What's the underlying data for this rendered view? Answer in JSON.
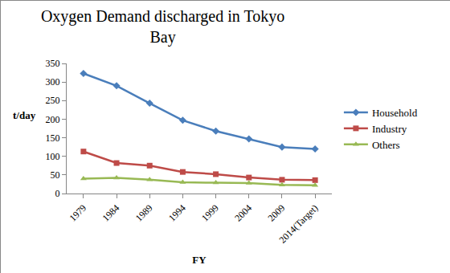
{
  "chart_data": {
    "type": "line",
    "title": "Oxygen Demand discharged in Tokyo Bay",
    "x_label": "FY",
    "y_label": "t/day",
    "categories": [
      "1979",
      "1984",
      "1989",
      "1994",
      "1999",
      "2004",
      "2009",
      "2014(Target)"
    ],
    "series": [
      {
        "name": "Household",
        "color": "#4a7ebb",
        "marker": "diamond",
        "values": [
          323,
          290,
          243,
          197,
          168,
          147,
          125,
          120
        ]
      },
      {
        "name": "Industry",
        "color": "#be4b48",
        "marker": "square",
        "values": [
          113,
          82,
          75,
          58,
          52,
          43,
          37,
          36
        ]
      },
      {
        "name": "Others",
        "color": "#98b954",
        "marker": "triangle-up",
        "values": [
          40,
          42,
          37,
          30,
          29,
          28,
          23,
          22
        ]
      }
    ],
    "ylim": [
      0,
      350
    ],
    "yticks": [
      0,
      50,
      100,
      150,
      200,
      250,
      300,
      350
    ],
    "grid": false,
    "legend": "right"
  }
}
